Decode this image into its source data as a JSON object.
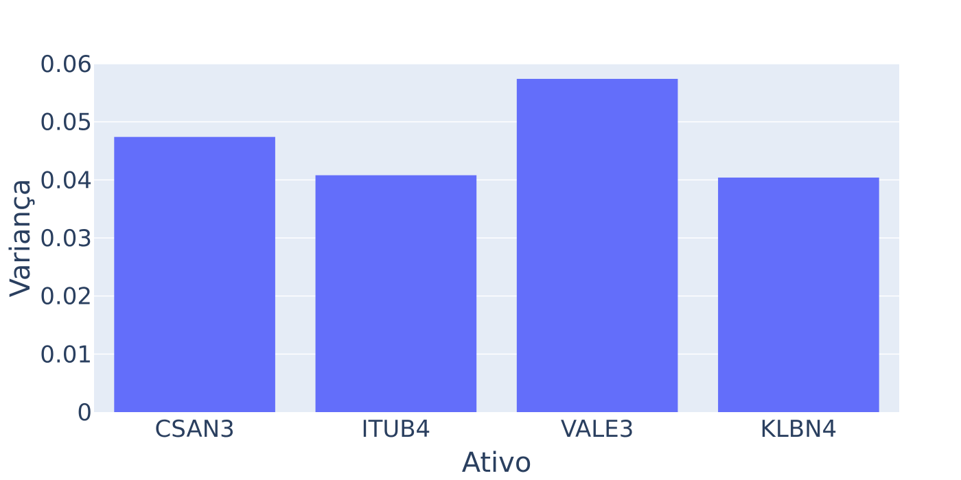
{
  "chart_data": {
    "type": "bar",
    "title": "",
    "xlabel": "Ativo",
    "ylabel": "Variança",
    "categories": [
      "CSAN3",
      "ITUB4",
      "VALE3",
      "KLBN4"
    ],
    "values": [
      0.0474,
      0.0408,
      0.0574,
      0.0404
    ],
    "ylim": [
      0,
      0.06
    ],
    "yticks": [
      "0",
      "0.01",
      "0.02",
      "0.03",
      "0.04",
      "0.05",
      "0.06"
    ],
    "grid": true,
    "legend": "none",
    "colors": {
      "bar": "#636efa",
      "plot_bg": "#e5ecf6",
      "grid": "#ffffff",
      "text": "#2a3f5f"
    }
  }
}
